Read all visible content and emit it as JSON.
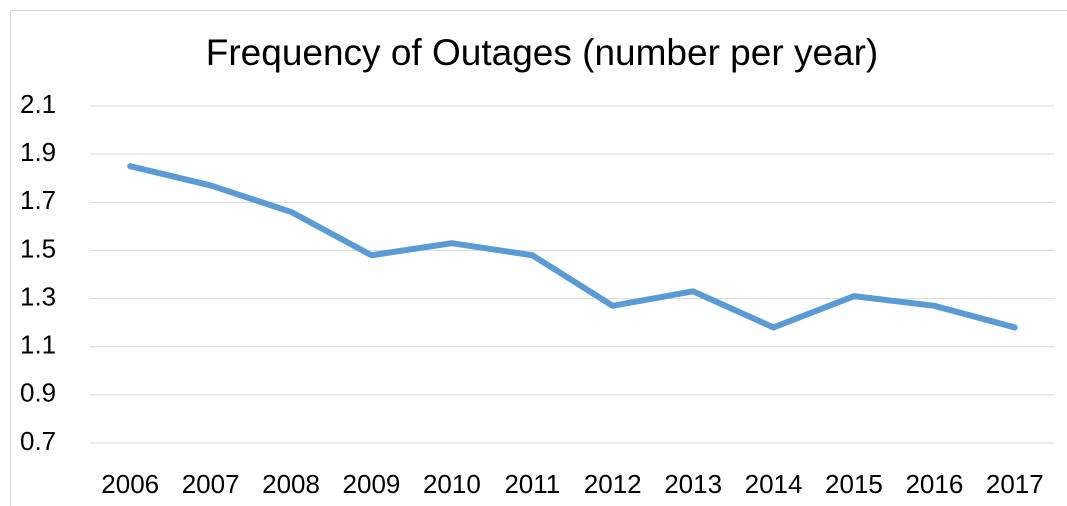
{
  "chart_data": {
    "type": "line",
    "title": "Frequency of Outages (number per year)",
    "categories": [
      "2006",
      "2007",
      "2008",
      "2009",
      "2010",
      "2011",
      "2012",
      "2013",
      "2014",
      "2015",
      "2016",
      "2017"
    ],
    "series": [
      {
        "name": "Frequency of Outages",
        "color": "#5b9bd5",
        "values": [
          1.85,
          1.77,
          1.66,
          1.48,
          1.53,
          1.48,
          1.27,
          1.33,
          1.18,
          1.31,
          1.27,
          1.18
        ]
      }
    ],
    "ylim": [
      0.7,
      2.1
    ],
    "yticks": [
      0.7,
      0.9,
      1.1,
      1.3,
      1.5,
      1.7,
      1.9,
      2.1
    ],
    "grid": true,
    "legend": false
  }
}
